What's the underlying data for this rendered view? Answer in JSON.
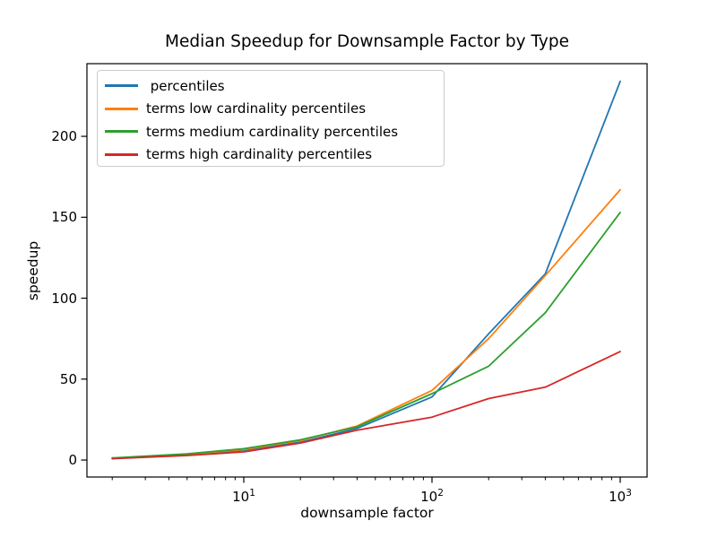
{
  "figure": {
    "background": "#ffffff"
  },
  "chart_data": {
    "type": "line",
    "title": "Median Speedup for Downsample Factor by Type",
    "xlabel": "downsample factor",
    "ylabel": "speedup",
    "x_scale": "log",
    "grid": false,
    "legend_position": "upper left",
    "x": [
      2,
      5,
      10,
      20,
      40,
      100,
      200,
      400,
      1000
    ],
    "series": [
      {
        "name": " percentiles",
        "color": "#1f77b4",
        "values": [
          1.0,
          3.0,
          6.0,
          11.0,
          19.5,
          39.0,
          78.0,
          115.0,
          234.0
        ]
      },
      {
        "name": "terms low cardinality percentiles",
        "color": "#ff7f0e",
        "values": [
          1.0,
          3.5,
          6.5,
          12.0,
          21.0,
          43.0,
          75.0,
          114.0,
          167.0
        ]
      },
      {
        "name": "terms medium cardinality percentiles",
        "color": "#2ca02c",
        "values": [
          1.3,
          3.8,
          7.0,
          12.5,
          20.5,
          41.0,
          58.0,
          91.0,
          153.0
        ]
      },
      {
        "name": "terms high cardinality percentiles",
        "color": "#d62728",
        "values": [
          0.8,
          2.8,
          5.0,
          10.5,
          18.5,
          26.5,
          38.0,
          45.0,
          67.0
        ]
      }
    ],
    "x_ticks": [
      {
        "v": 10,
        "base": "10",
        "exp": "1"
      },
      {
        "v": 100,
        "base": "10",
        "exp": "2"
      },
      {
        "v": 1000,
        "base": "10",
        "exp": "3"
      }
    ],
    "y_ticks": [
      0,
      50,
      100,
      150,
      200
    ],
    "xlim": [
      1.468,
      1389.5
    ],
    "ylim": [
      -10.5,
      244.9
    ],
    "axis_color": "#000000"
  }
}
